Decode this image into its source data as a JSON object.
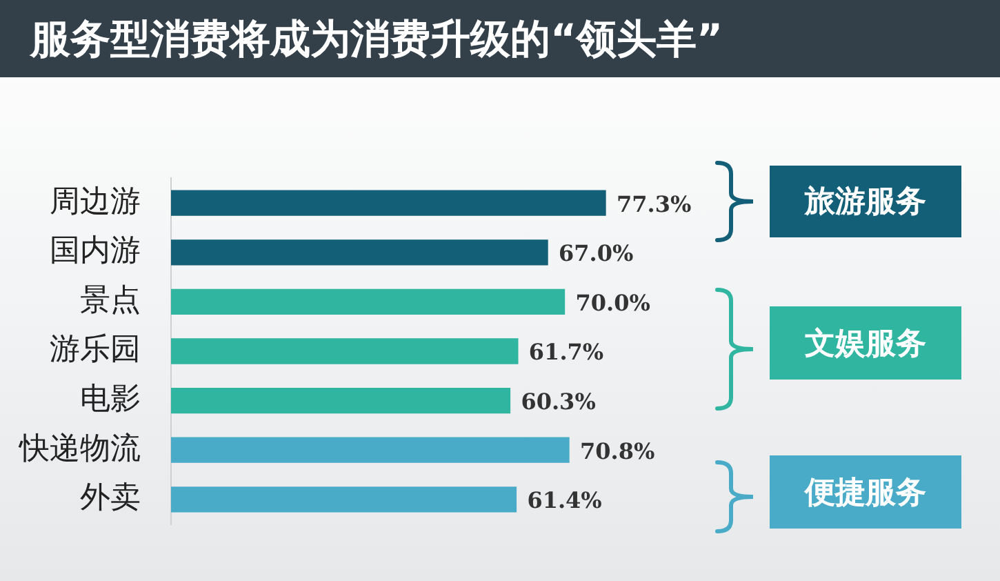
{
  "chart_data": {
    "type": "bar",
    "orientation": "horizontal",
    "title": "服务型消费将成为消费升级的“领头羊”",
    "categories": [
      "周边游",
      "国内游",
      "景点",
      "游乐园",
      "电影",
      "快递物流",
      "外卖"
    ],
    "values": [
      77.3,
      67.0,
      70.0,
      61.7,
      60.3,
      70.8,
      61.4
    ],
    "colors": [
      "#135f78",
      "#135f78",
      "#2fb5a0",
      "#2fb5a0",
      "#2fb5a0",
      "#4aabc8",
      "#4aabc8"
    ],
    "value_labels": [
      "77.3%",
      "67.0%",
      "70.0%",
      "61.7%",
      "60.3%",
      "70.8%",
      "61.4%"
    ],
    "annotations": [
      "旅游服务",
      "文娱服务",
      "便捷服务"
    ],
    "tick_labels": "y"
  }
}
